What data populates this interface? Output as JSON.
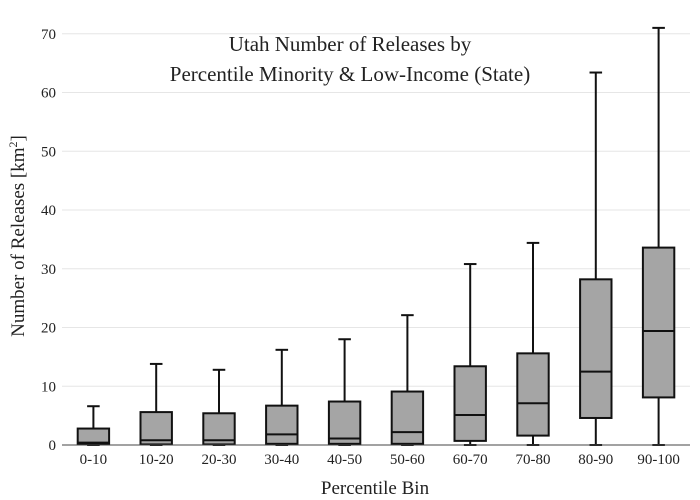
{
  "chart_data": {
    "type": "box",
    "title_line1": "Utah Number of Releases by",
    "title_line2": "Percentile Minority & Low-Income (State)",
    "xlabel": "Percentile Bin",
    "ylabel_main": "Number of Releases  [km",
    "ylabel_sup": "2",
    "ylabel_close": "]",
    "ylim": [
      0,
      72
    ],
    "yticks": [
      0,
      10,
      20,
      30,
      40,
      50,
      60,
      70
    ],
    "grid": true,
    "box_color": "#a5a5a5",
    "line_color": "#111111",
    "grid_color": "#e6e6e6",
    "categories": [
      "0-10",
      "10-20",
      "20-30",
      "30-40",
      "40-50",
      "50-60",
      "60-70",
      "70-80",
      "80-90",
      "90-100"
    ],
    "boxes": [
      {
        "category": "0-10",
        "min": 0,
        "q1": 0.1,
        "median": 0.4,
        "q3": 2.8,
        "max": 6.6
      },
      {
        "category": "10-20",
        "min": 0,
        "q1": 0.1,
        "median": 0.8,
        "q3": 5.6,
        "max": 13.8
      },
      {
        "category": "20-30",
        "min": 0,
        "q1": 0.1,
        "median": 0.8,
        "q3": 5.4,
        "max": 12.8
      },
      {
        "category": "30-40",
        "min": 0,
        "q1": 0.2,
        "median": 1.8,
        "q3": 6.7,
        "max": 16.2
      },
      {
        "category": "40-50",
        "min": 0,
        "q1": 0.2,
        "median": 1.1,
        "q3": 7.4,
        "max": 18.0
      },
      {
        "category": "50-60",
        "min": 0,
        "q1": 0.2,
        "median": 2.2,
        "q3": 9.1,
        "max": 22.1
      },
      {
        "category": "60-70",
        "min": 0,
        "q1": 0.7,
        "median": 5.1,
        "q3": 13.4,
        "max": 30.8
      },
      {
        "category": "70-80",
        "min": 0,
        "q1": 1.6,
        "median": 7.1,
        "q3": 15.6,
        "max": 34.4
      },
      {
        "category": "80-90",
        "min": 0,
        "q1": 4.6,
        "median": 12.5,
        "q3": 28.2,
        "max": 63.4
      },
      {
        "category": "90-100",
        "min": 0,
        "q1": 8.1,
        "median": 19.4,
        "q3": 33.6,
        "max": 71.0
      }
    ]
  }
}
